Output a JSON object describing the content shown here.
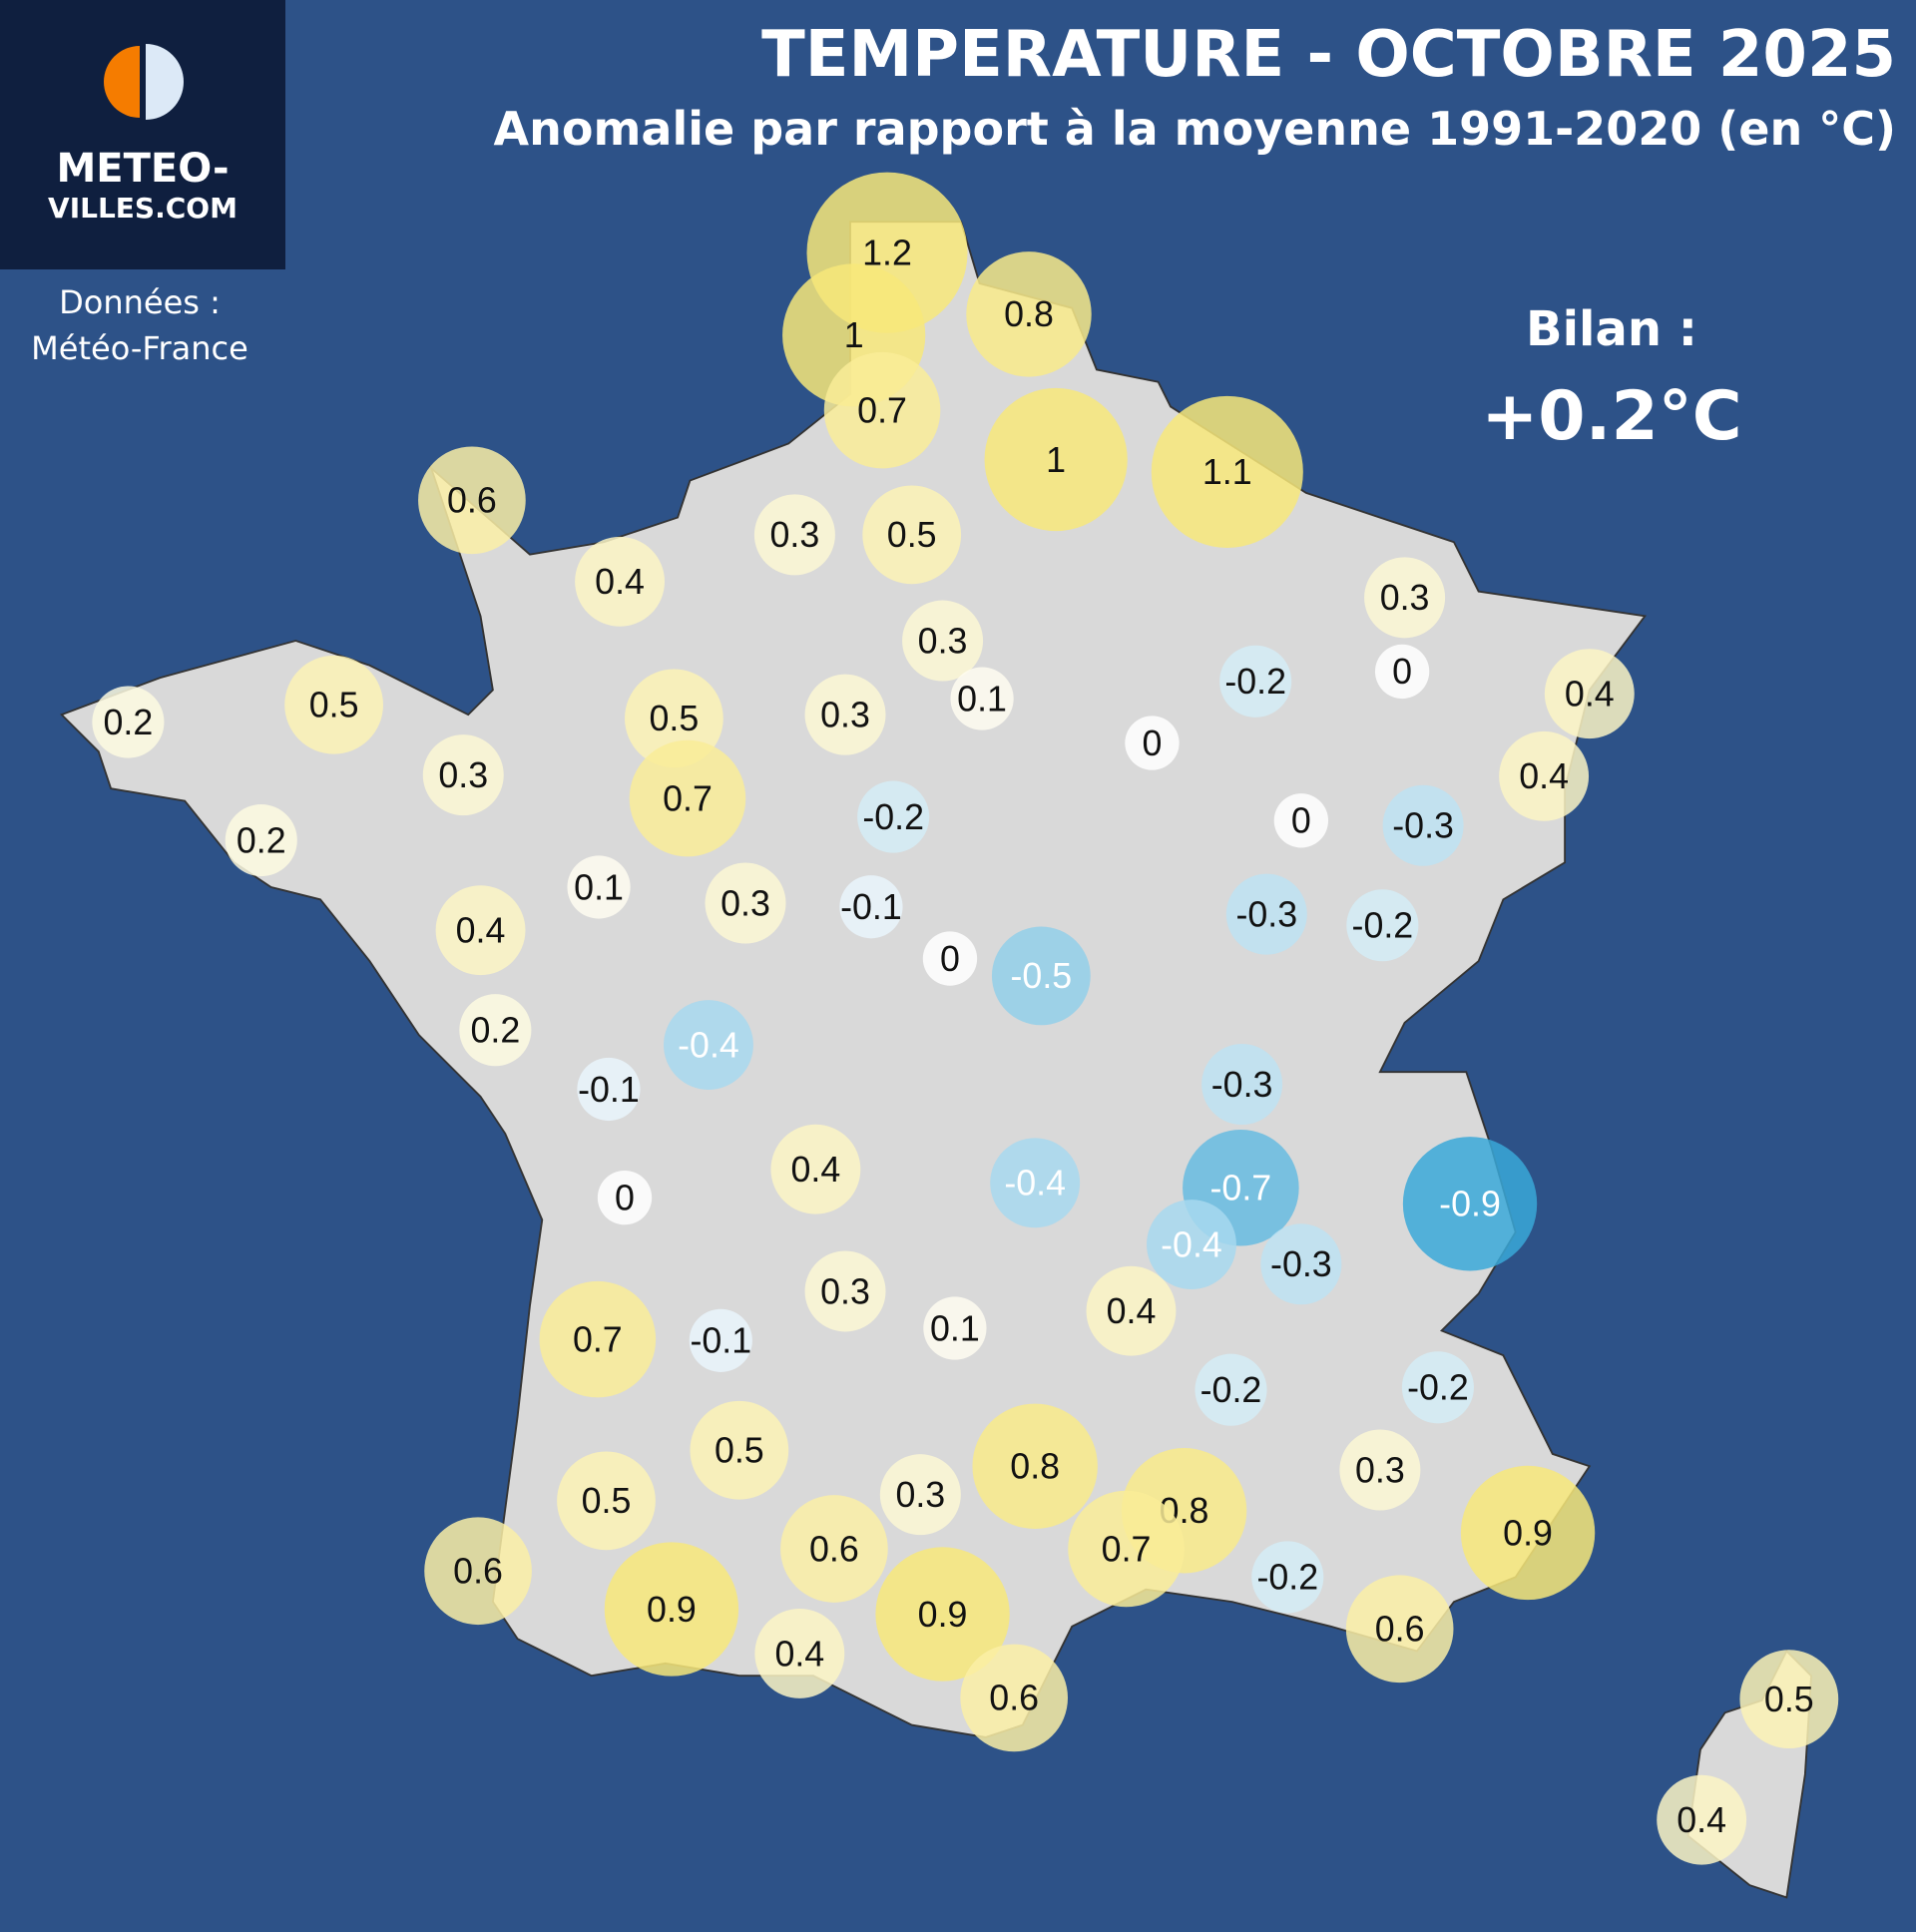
{
  "header": {
    "title": "TEMPERATURE - OCTOBRE 2025",
    "subtitle": "Anomalie par rapport à la moyenne 1991-2020 (en °C)"
  },
  "logo": {
    "line1": "METEO-",
    "line2": "VILLES.COM"
  },
  "source": {
    "line1": "Données :",
    "line2": "Météo-France"
  },
  "summary": {
    "label": "Bilan :",
    "value": "+0.2°C"
  },
  "colors": {
    "background": "#2d5288",
    "land": "#d9d9d9",
    "warm": "#f7e77a",
    "cold": "#3aa8d8",
    "neutral": "#ffffff",
    "logo_orange": "#f57c00"
  },
  "stations": [
    1.2,
    0.8,
    1,
    0.7,
    1,
    1.1,
    0.6,
    0.3,
    0.5,
    0.4,
    0.3,
    0.3,
    -0.2,
    0,
    0.1,
    0.4,
    0.2,
    0.5,
    0.5,
    0.3,
    0,
    0.3,
    0.4,
    0.7,
    -0.2,
    0,
    -0.3,
    0.2,
    0.1,
    0.3,
    -0.1,
    0.4,
    -0.3,
    -0.2,
    0,
    -0.5,
    0.2,
    -0.4,
    -0.1,
    -0.3,
    0.4,
    -0.4,
    -0.7,
    -0.9,
    0,
    -0.4,
    -0.3,
    0.3,
    0.4,
    0.7,
    -0.1,
    0.1,
    -0.2,
    -0.2,
    0.5,
    0.8,
    0.3,
    0.5,
    0.3,
    0.8,
    0.9,
    0.6,
    0.6,
    0.7,
    -0.2,
    0.9,
    0.9,
    0.6,
    0.4,
    0.6,
    0.5,
    0.4
  ]
}
